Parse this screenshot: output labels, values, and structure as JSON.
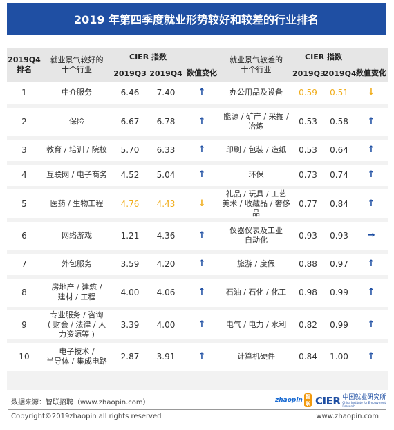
{
  "title": "2019 年第四季度就业形势较好和较差的行业排名",
  "header": {
    "rank_label": "2019Q4\n排名",
    "good_label": "就业景气较好的\n十个行业",
    "cier_label": "CIER 指数",
    "bad_label": "就业景气较差的\n十个行业",
    "q3_label": "2019Q3",
    "q4_label": "2019Q4",
    "change_label": "数值变化"
  },
  "rows": [
    {
      "rank": "1",
      "good": "中介服务",
      "g_q3": "6.46",
      "g_q4": "7.40",
      "g_change": "up",
      "bad": "办公用品及设备",
      "b_q3": "0.59",
      "b_q4": "0.51",
      "b_change": "down"
    },
    {
      "rank": "2",
      "good": "保险",
      "g_q3": "6.67",
      "g_q4": "6.78",
      "g_change": "up",
      "bad": "能源 / 矿产 / 采掘 /\n冶炼",
      "b_q3": "0.53",
      "b_q4": "0.58",
      "b_change": "up"
    },
    {
      "rank": "3",
      "good": "教育 / 培训 / 院校",
      "g_q3": "5.70",
      "g_q4": "6.33",
      "g_change": "up",
      "bad": "印刷 / 包装 / 造纸",
      "b_q3": "0.53",
      "b_q4": "0.64",
      "b_change": "up"
    },
    {
      "rank": "4",
      "good": "互联网 / 电子商务",
      "g_q3": "4.52",
      "g_q4": "5.04",
      "g_change": "up",
      "bad": "环保",
      "b_q3": "0.73",
      "b_q4": "0.74",
      "b_change": "up"
    },
    {
      "rank": "5",
      "good": "医药 / 生物工程",
      "g_q3": "4.76",
      "g_q4": "4.43",
      "g_change": "down",
      "bad": "礼品 / 玩具 / 工艺\n美术 / 收藏品 / 奢侈品",
      "b_q3": "0.77",
      "b_q4": "0.84",
      "b_change": "up"
    },
    {
      "rank": "6",
      "good": "网络游戏",
      "g_q3": "1.21",
      "g_q4": "4.36",
      "g_change": "up",
      "bad": "仪器仪表及工业\n自动化",
      "b_q3": "0.93",
      "b_q4": "0.93",
      "b_change": "flat"
    },
    {
      "rank": "7",
      "good": "外包服务",
      "g_q3": "3.59",
      "g_q4": "4.20",
      "g_change": "up",
      "bad": "旅游 / 度假",
      "b_q3": "0.88",
      "b_q4": "0.97",
      "b_change": "up"
    },
    {
      "rank": "8",
      "good": "房地产 / 建筑 /\n建材 / 工程",
      "g_q3": "4.00",
      "g_q4": "4.06",
      "g_change": "up",
      "bad": "石油 / 石化 / 化工",
      "b_q3": "0.98",
      "b_q4": "0.99",
      "b_change": "up"
    },
    {
      "rank": "9",
      "good": "专业服务 / 咨询\n( 财会 / 法律 / 人\n力资源等 )",
      "g_q3": "3.39",
      "g_q4": "4.00",
      "g_change": "up",
      "bad": "电气 / 电力 / 水利",
      "b_q3": "0.82",
      "b_q4": "0.99",
      "b_change": "up"
    },
    {
      "rank": "10",
      "good": "电子技术 /\n半导体 / 集成电路",
      "g_q3": "2.87",
      "g_q4": "3.91",
      "g_change": "up",
      "bad": "计算机硬件",
      "b_q3": "0.84",
      "b_q4": "1.00",
      "b_change": "up"
    }
  ],
  "colors": {
    "accent": "#1f4fa3",
    "highlight": "#f0ad1b"
  },
  "footer": {
    "source": "数据来源：智联招聘（www.zhaopin.com）",
    "copyright": "Copyright©2019zhaopin all rights reserved",
    "url": "www.zhaopin.com",
    "logo_zhaopin": "zhaopin",
    "logo_zhaopin_cn": "智联",
    "logo_cier": "CIER",
    "logo_cier_cn": "中国就业研究所",
    "logo_cier_en": "China Institute for Employment Research"
  }
}
